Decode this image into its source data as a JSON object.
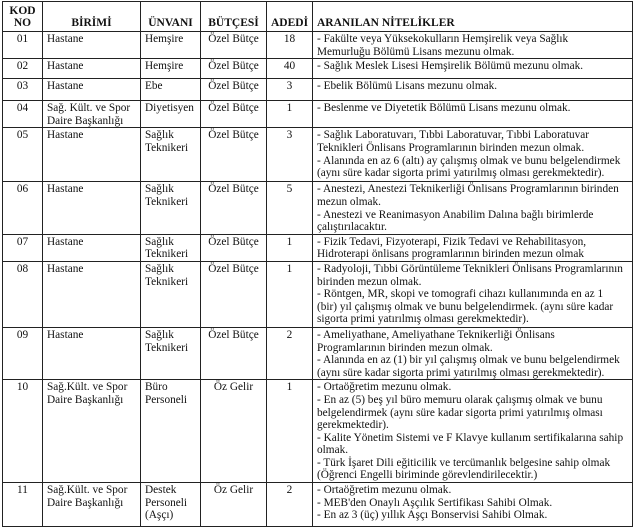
{
  "headers": {
    "kod": [
      "KOD",
      "NO"
    ],
    "birim": "BİRİMİ",
    "unvan": "ÜNVANI",
    "butce": "BÜTÇESİ",
    "adet": "ADEDİ",
    "nitelik": "ARANILAN NİTELİKLER"
  },
  "rows": [
    {
      "kod": "01",
      "birim": [
        "Hastane"
      ],
      "unvan": [
        "Hemşire"
      ],
      "butce": "Özel Bütçe",
      "adet": "18",
      "nitelik": [
        "- Fakülte veya Yüksekokulların Hemşirelik veya  Sağlık",
        "Memurluğu Bölümü Lisans mezunu olmak."
      ]
    },
    {
      "kod": "02",
      "birim": [
        "Hastane"
      ],
      "unvan": [
        "Hemşire"
      ],
      "butce": "Özel Bütçe",
      "adet": "40",
      "nitelik": [
        "- Sağlık Meslek Lisesi Hemşirelik Bölümü mezunu olmak."
      ]
    },
    {
      "kod": "03",
      "birim": [
        "Hastane"
      ],
      "unvan": [
        "Ebe"
      ],
      "butce": "Özel Bütçe",
      "adet": "3",
      "nitelik": [
        "- Ebelik Bölümü Lisans mezunu olmak."
      ]
    },
    {
      "kod": "04",
      "birim": [
        "Sağ. Kült. ve Spor",
        "Daire Başkanlığı"
      ],
      "unvan": [
        "Diyetisyen"
      ],
      "butce": "Özel Bütçe",
      "adet": "1",
      "nitelik": [
        "- Beslenme ve Diyetetik Bölümü Lisans mezunu olmak."
      ]
    },
    {
      "kod": "05",
      "birim": [
        "Hastane"
      ],
      "unvan": [
        "Sağlık",
        "Teknikeri"
      ],
      "butce": "Özel Bütçe",
      "adet": "3",
      "nitelik": [
        "- Sağlık Laboratuvarı, Tıbbi Laboratuvar, Tıbbi Laboratuvar",
        "Teknikleri Önlisans Programlarının birinden mezun olmak.",
        "- Alanında en az 6 (altı) ay çalışmış olmak ve bunu belgelendirmek",
        "(aynı süre kadar sigorta primi yatırılmış olması gerekmektedir)."
      ]
    },
    {
      "kod": "06",
      "birim": [
        "Hastane"
      ],
      "unvan": [
        "Sağlık",
        "Teknikeri"
      ],
      "butce": "Özel Bütçe",
      "adet": "5",
      "nitelik": [
        "- Anestezi, Anestezi Teknikerliği Önlisans Programlarının birinden",
        "mezun olmak.",
        "- Anestezi ve Reanimasyon Anabilim Dalına bağlı birimlerde",
        "çalıştırılacaktır."
      ]
    },
    {
      "kod": "07",
      "birim": [
        "Hastane"
      ],
      "unvan": [
        "Sağlık",
        "Teknikeri"
      ],
      "butce": "Özel Bütçe",
      "adet": "1",
      "nitelik": [
        "- Fizik Tedavi, Fizyoterapi, Fizik Tedavi ve Rehabilitasyon,",
        "Hidroterapi önlisans programlarının birinden mezun olmak"
      ]
    },
    {
      "kod": "08",
      "birim": [
        "Hastane"
      ],
      "unvan": [
        "Sağlık",
        "Teknikeri"
      ],
      "butce": "Özel Bütçe",
      "adet": "1",
      "nitelik": [
        "- Radyoloji, Tıbbi Görüntüleme Teknikleri Önlisans Programlarının",
        "birinden mezun olmak.",
        "- Röntgen, MR, skopi ve tomografi cihazı kullanımında en az 1",
        "(bir) yıl çalışmış olmak ve bunu belgelendirmek. (aynı süre kadar",
        "sigorta primi yatırılmış olması gerekmektedir)."
      ]
    },
    {
      "kod": "09",
      "birim": [
        "Hastane"
      ],
      "unvan": [
        "Sağlık",
        "Teknikeri"
      ],
      "butce": "Özel Bütçe",
      "adet": "2",
      "nitelik": [
        "- Ameliyathane, Ameliyathane Teknikerliği Önlisans",
        "Programlarının birinden mezun olmak.",
        "- Alanında en az (1) bir yıl çalışmış olmak ve bunu belgelendirmek",
        "(aynı süre kadar sigorta primi yatırılmış olması gerekmektedir)."
      ]
    },
    {
      "kod": "10",
      "birim": [
        "Sağ.Kült. ve Spor",
        "Daire Başkanlığı"
      ],
      "unvan": [
        "Büro",
        "Personeli"
      ],
      "butce": "Öz Gelir",
      "adet": "1",
      "nitelik": [
        "- Ortaöğretim mezunu olmak.",
        "- En az  (5) beş yıl büro memuru olarak çalışmış olmak ve bunu",
        "belgelendirmek (aynı süre kadar sigorta primi yatırılmış olması",
        "gerekmektedir).",
        "- Kalite Yönetim Sistemi ve F Klavye kullanım sertifikalarına sahip",
        "olmak.",
        "- Türk İşaret Dili eğiticilik ve tercümanlık belgesine sahip olmak",
        " (Öğrenci Engelli biriminde görevlendirilecektir.)"
      ]
    },
    {
      "kod": "11",
      "birim": [
        "Sağ.Kült. ve Spor",
        "Daire Başkanlığı"
      ],
      "unvan": [
        "Destek",
        "Personeli",
        "(Aşçı)"
      ],
      "butce": "Öz Gelir",
      "adet": "2",
      "nitelik": [
        "- Ortaöğretim mezunu olmak.",
        "- MEB'den Onaylı Aşçılık Sertifikası Sahibi Olmak.",
        "- En az 3 (üç) yıllık Aşçı Bonservisi Sahibi Olmak."
      ]
    }
  ]
}
